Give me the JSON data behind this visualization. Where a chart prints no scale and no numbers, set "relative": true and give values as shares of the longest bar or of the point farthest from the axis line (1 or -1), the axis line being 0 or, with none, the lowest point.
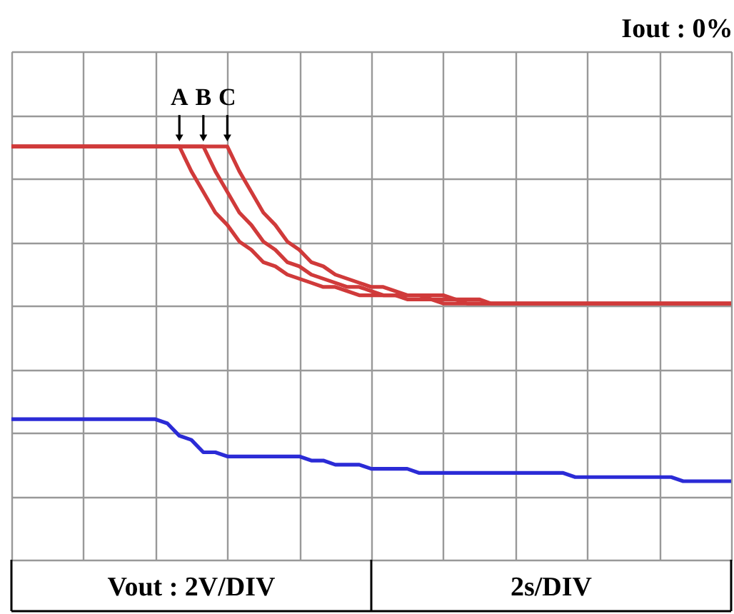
{
  "chart_data": {
    "type": "line",
    "relative": true,
    "title": "Iout : 0%",
    "xlabel": "2s/DIV",
    "grid": true,
    "marker": "none",
    "line_style": "solid",
    "categories": [
      null,
      null,
      null,
      null,
      null,
      null,
      null,
      null,
      null,
      null,
      null,
      null,
      null,
      null,
      null,
      null,
      null,
      null,
      null,
      null,
      null,
      null,
      null,
      null,
      null,
      null,
      null,
      null,
      null,
      null,
      null,
      null,
      null,
      null,
      null,
      null,
      null,
      null,
      null,
      null,
      null,
      null,
      null,
      null,
      null,
      null,
      null,
      null,
      null,
      null,
      null,
      null,
      null,
      null,
      null,
      null,
      null,
      null,
      null,
      null,
      null
    ],
    "series": [
      {
        "color": "#d03a3a",
        "values": [
          1.0,
          1.0,
          1.0,
          1.0,
          1.0,
          1.0,
          1.0,
          1.0,
          1.0,
          1.0,
          1.0,
          1.0,
          1.0,
          1.0,
          1.0,
          0.94,
          0.89,
          0.84,
          0.81,
          0.77,
          0.75,
          0.72,
          0.71,
          0.69,
          0.68,
          0.67,
          0.66,
          0.66,
          0.65,
          0.64,
          0.64,
          0.64,
          0.64,
          0.63,
          0.63,
          0.63,
          0.62,
          0.62,
          0.62,
          0.62,
          0.62,
          0.62,
          0.62,
          0.62,
          0.62,
          0.62,
          0.62,
          0.62,
          0.62,
          0.62,
          0.62,
          0.62,
          0.62,
          0.62,
          0.62,
          0.62,
          0.62,
          0.62,
          0.62,
          0.62,
          0.62
        ]
      },
      {
        "color": "#d03a3a",
        "values": [
          1.0,
          1.0,
          1.0,
          1.0,
          1.0,
          1.0,
          1.0,
          1.0,
          1.0,
          1.0,
          1.0,
          1.0,
          1.0,
          1.0,
          1.0,
          1.0,
          1.0,
          0.94,
          0.89,
          0.84,
          0.81,
          0.77,
          0.75,
          0.72,
          0.71,
          0.69,
          0.68,
          0.67,
          0.66,
          0.66,
          0.65,
          0.64,
          0.64,
          0.64,
          0.64,
          0.63,
          0.63,
          0.63,
          0.62,
          0.62,
          0.62,
          0.62,
          0.62,
          0.62,
          0.62,
          0.62,
          0.62,
          0.62,
          0.62,
          0.62,
          0.62,
          0.62,
          0.62,
          0.62,
          0.62,
          0.62,
          0.62,
          0.62,
          0.62,
          0.62,
          0.62
        ]
      },
      {
        "color": "#d03a3a",
        "values": [
          1.0,
          1.0,
          1.0,
          1.0,
          1.0,
          1.0,
          1.0,
          1.0,
          1.0,
          1.0,
          1.0,
          1.0,
          1.0,
          1.0,
          1.0,
          1.0,
          1.0,
          1.0,
          1.0,
          0.94,
          0.89,
          0.84,
          0.81,
          0.77,
          0.75,
          0.72,
          0.71,
          0.69,
          0.68,
          0.67,
          0.66,
          0.66,
          0.65,
          0.64,
          0.64,
          0.64,
          0.64,
          0.63,
          0.63,
          0.63,
          0.62,
          0.62,
          0.62,
          0.62,
          0.62,
          0.62,
          0.62,
          0.62,
          0.62,
          0.62,
          0.62,
          0.62,
          0.62,
          0.62,
          0.62,
          0.62,
          0.62,
          0.62,
          0.62,
          0.62,
          0.62
        ]
      },
      {
        "color": "#2b2bd6",
        "values": [
          0.34,
          0.34,
          0.34,
          0.34,
          0.34,
          0.34,
          0.34,
          0.34,
          0.34,
          0.34,
          0.34,
          0.34,
          0.34,
          0.33,
          0.3,
          0.29,
          0.26,
          0.26,
          0.25,
          0.25,
          0.25,
          0.25,
          0.25,
          0.25,
          0.25,
          0.24,
          0.24,
          0.23,
          0.23,
          0.23,
          0.22,
          0.22,
          0.22,
          0.22,
          0.21,
          0.21,
          0.21,
          0.21,
          0.21,
          0.21,
          0.21,
          0.21,
          0.21,
          0.21,
          0.21,
          0.21,
          0.21,
          0.2,
          0.2,
          0.2,
          0.2,
          0.2,
          0.2,
          0.2,
          0.2,
          0.2,
          0.19,
          0.19,
          0.19,
          0.19,
          0.19
        ]
      }
    ],
    "annotations": [
      {
        "text": "A",
        "y": 1.0
      },
      {
        "text": "B",
        "y": 1.0
      },
      {
        "text": "C",
        "y": 1.0
      },
      "Vout : 2V/DIV"
    ]
  }
}
